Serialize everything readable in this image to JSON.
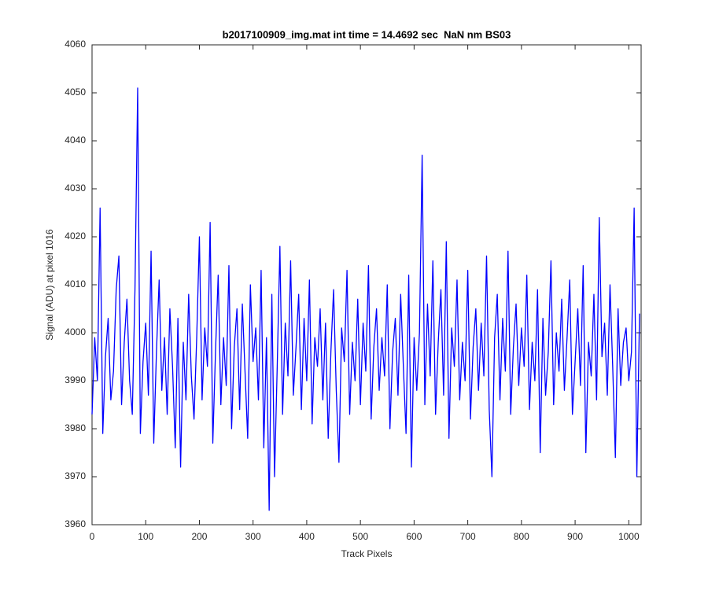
{
  "chart_data": {
    "type": "line",
    "title": "b2017100909_img.mat int time = 14.4692 sec  NaN nm BS03",
    "x_label": "Track Pixels",
    "y_label": "Signal (ADU) at pixel 1016",
    "xlim": [
      0,
      1023
    ],
    "ylim": [
      3960,
      4060
    ],
    "xticks": [
      0,
      100,
      200,
      300,
      400,
      500,
      600,
      700,
      800,
      900,
      1000
    ],
    "yticks": [
      3960,
      3970,
      3980,
      3990,
      4000,
      4010,
      4020,
      4030,
      4040,
      4050,
      4060
    ],
    "grid": false,
    "series": [
      {
        "color": "#0000ff",
        "x": [
          0,
          5,
          10,
          15,
          20,
          25,
          30,
          35,
          40,
          45,
          50,
          55,
          60,
          65,
          70,
          75,
          80,
          85,
          90,
          95,
          100,
          105,
          110,
          115,
          120,
          125,
          130,
          135,
          140,
          145,
          150,
          155,
          160,
          165,
          170,
          175,
          180,
          185,
          190,
          195,
          200,
          205,
          210,
          215,
          220,
          225,
          230,
          235,
          240,
          245,
          250,
          255,
          260,
          265,
          270,
          275,
          280,
          285,
          290,
          295,
          300,
          305,
          310,
          315,
          320,
          325,
          330,
          335,
          340,
          345,
          350,
          355,
          360,
          365,
          370,
          375,
          380,
          385,
          390,
          395,
          400,
          405,
          410,
          415,
          420,
          425,
          430,
          435,
          440,
          445,
          450,
          455,
          460,
          465,
          470,
          475,
          480,
          485,
          490,
          495,
          500,
          505,
          510,
          515,
          520,
          525,
          530,
          535,
          540,
          545,
          550,
          555,
          560,
          565,
          570,
          575,
          580,
          585,
          590,
          595,
          600,
          605,
          610,
          615,
          620,
          625,
          630,
          635,
          640,
          645,
          650,
          655,
          660,
          665,
          670,
          675,
          680,
          685,
          690,
          695,
          700,
          705,
          710,
          715,
          720,
          725,
          730,
          735,
          740,
          745,
          750,
          755,
          760,
          765,
          770,
          775,
          780,
          785,
          790,
          795,
          800,
          805,
          810,
          815,
          820,
          825,
          830,
          835,
          840,
          845,
          850,
          855,
          860,
          865,
          870,
          875,
          880,
          885,
          890,
          895,
          900,
          905,
          910,
          915,
          920,
          925,
          930,
          935,
          940,
          945,
          950,
          955,
          960,
          965,
          970,
          975,
          980,
          985,
          990,
          995,
          1000,
          1005,
          1010,
          1015,
          1020
        ],
        "values": [
          3983,
          3999,
          3990,
          4026,
          3979,
          3995,
          4003,
          3986,
          3992,
          4009,
          4016,
          3985,
          3998,
          4007,
          3990,
          3983,
          4009,
          4051,
          3979,
          3994,
          4002,
          3987,
          4017,
          3977,
          3996,
          4011,
          3988,
          3999,
          3983,
          4005,
          3993,
          3976,
          4003,
          3972,
          3998,
          3986,
          4008,
          3991,
          3982,
          3999,
          4020,
          3986,
          4001,
          3993,
          4023,
          3977,
          3996,
          4012,
          3985,
          3999,
          3989,
          4014,
          3980,
          3997,
          4005,
          3984,
          4006,
          3992,
          3978,
          4010,
          3994,
          4001,
          3986,
          4013,
          3976,
          3999,
          3963,
          4008,
          3970,
          3993,
          4018,
          3983,
          4002,
          3991,
          4015,
          3987,
          3997,
          4008,
          3984,
          4003,
          3990,
          4011,
          3981,
          3999,
          3993,
          4005,
          3986,
          4002,
          3978,
          3996,
          4009,
          3988,
          3973,
          4001,
          3994,
          4013,
          3983,
          3998,
          3990,
          4007,
          3985,
          4002,
          3992,
          4014,
          3982,
          3997,
          4005,
          3988,
          3999,
          3991,
          4010,
          3980,
          3996,
          4003,
          3987,
          4008,
          3993,
          3979,
          4012,
          3972,
          3999,
          3988,
          4000,
          4037,
          3985,
          4006,
          3991,
          4015,
          3983,
          3998,
          4009,
          3987,
          4019,
          3978,
          4001,
          3993,
          4011,
          3986,
          3998,
          3990,
          4013,
          3982,
          3997,
          4005,
          3988,
          4002,
          3991,
          4016,
          3984,
          3970,
          3999,
          4008,
          3986,
          4003,
          3992,
          4017,
          3983,
          3997,
          4006,
          3989,
          4001,
          3993,
          4012,
          3984,
          3998,
          3990,
          4009,
          3975,
          4003,
          3987,
          3996,
          4015,
          3985,
          4000,
          3992,
          4007,
          3988,
          3999,
          4011,
          3983,
          3994,
          4005,
          3989,
          4014,
          3975,
          3998,
          3991,
          4008,
          3986,
          4024,
          3995,
          4002,
          3987,
          4010,
          3993,
          3974,
          4005,
          3989,
          3998,
          4001,
          3990,
          3996,
          4026,
          3970,
          4004
        ]
      }
    ]
  }
}
